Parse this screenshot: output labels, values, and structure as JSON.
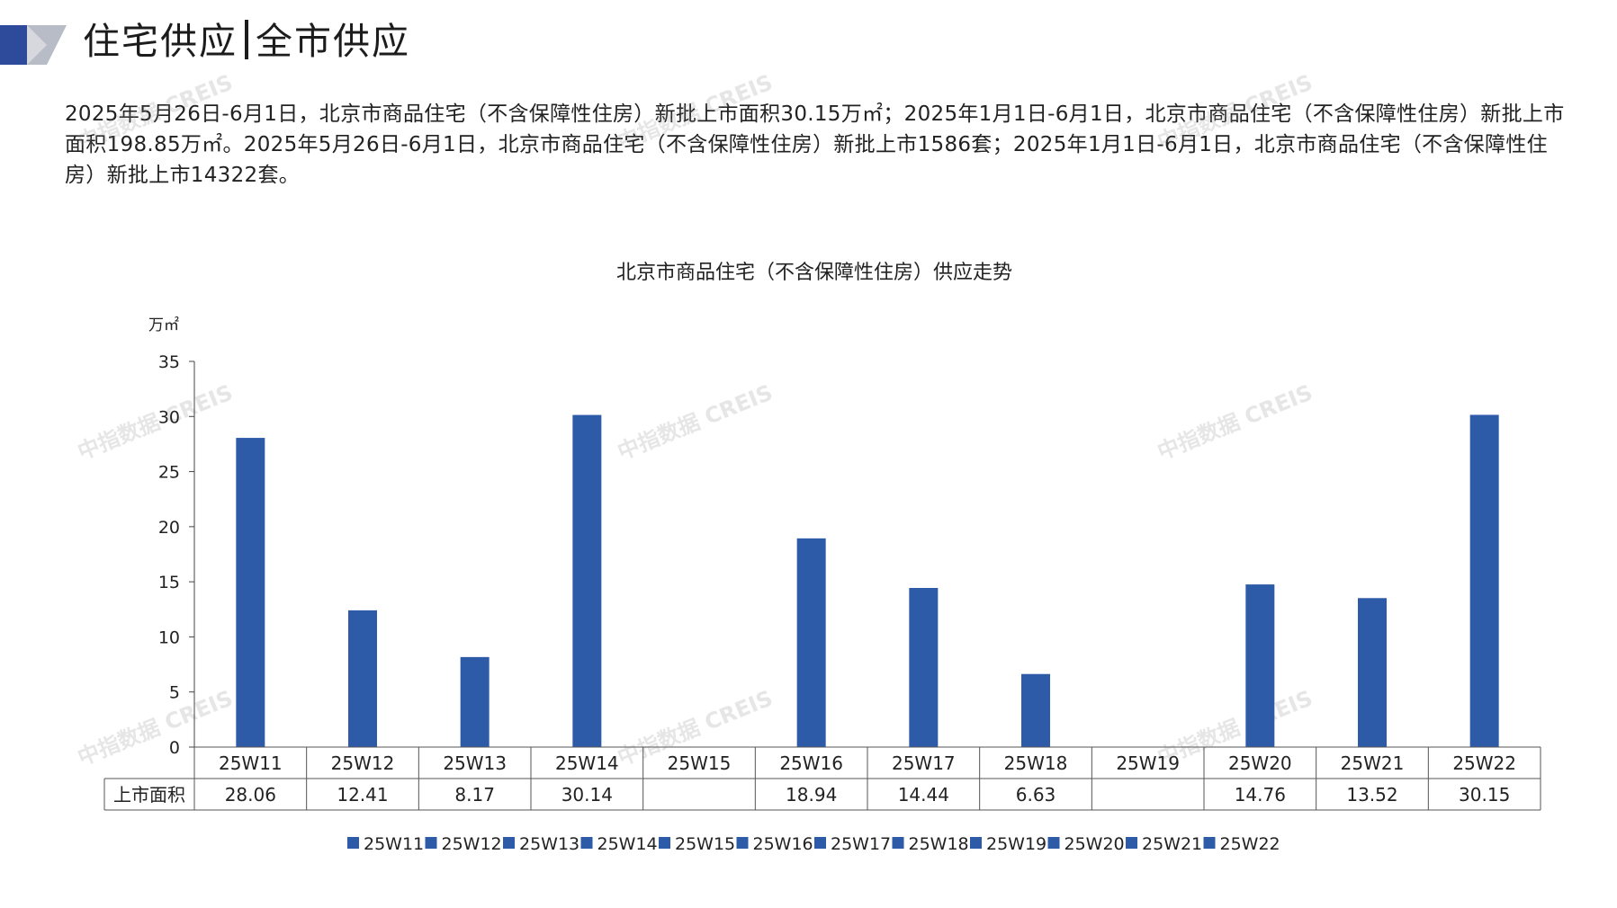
{
  "header": {
    "title_part1": "住宅供应",
    "title_part2": "全市供应"
  },
  "summary": "2025年5月26日-6月1日，北京市商品住宅（不含保障性住房）新批上市面积30.15万㎡；2025年1月1日-6月1日，北京市商品住宅（不含保障性住房）新批上市面积198.85万㎡。2025年5月26日-6月1日，北京市商品住宅（不含保障性住房）新批上市1586套；2025年1月1日-6月1日，北京市商品住宅（不含保障性住房）新批上市14322套。",
  "watermark": "中指数据 CREIS",
  "colors": {
    "bar": "#2E5BA8",
    "brand_dark": "#2E4A9A",
    "brand_gray": "#B8BCC6"
  },
  "chart_data": {
    "type": "bar",
    "title": "北京市商品住宅（不含保障性住房）供应走势",
    "y_unit": "万㎡",
    "ylim": [
      0,
      35
    ],
    "yticks": [
      "0",
      "5",
      "10",
      "15",
      "20",
      "25",
      "30",
      "35"
    ],
    "categories": [
      "25W11",
      "25W12",
      "25W13",
      "25W14",
      "25W15",
      "25W16",
      "25W17",
      "25W18",
      "25W19",
      "25W20",
      "25W21",
      "25W22"
    ],
    "series": [
      {
        "name": "上市面积",
        "values": [
          28.06,
          12.41,
          8.17,
          30.14,
          null,
          18.94,
          14.44,
          6.63,
          null,
          14.76,
          13.52,
          30.15
        ],
        "labels": [
          "28.06",
          "12.41",
          "8.17",
          "30.14",
          "",
          "18.94",
          "14.44",
          "6.63",
          "",
          "14.76",
          "13.52",
          "30.15"
        ]
      }
    ],
    "legend": [
      "25W11",
      "25W12",
      "25W13",
      "25W14",
      "25W15",
      "25W16",
      "25W17",
      "25W18",
      "25W19",
      "25W20",
      "25W21",
      "25W22"
    ],
    "legend_position": "bottom",
    "data_table": true,
    "grid": false
  }
}
